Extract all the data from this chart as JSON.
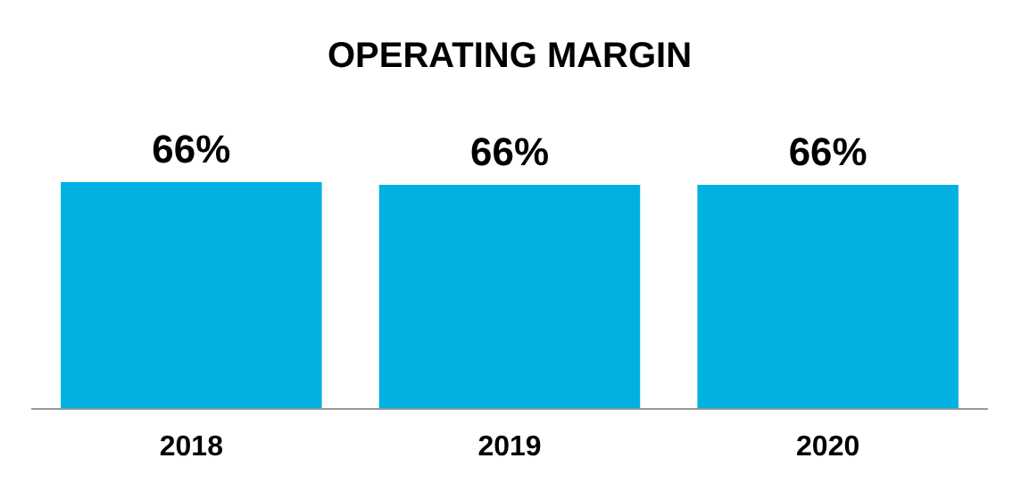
{
  "chart_data": {
    "type": "bar",
    "title": "OPERATING MARGIN",
    "categories": [
      "2018",
      "2019",
      "2020"
    ],
    "values": [
      66.4,
      65.6,
      65.6
    ],
    "value_labels": [
      "66%",
      "66%",
      "66%"
    ],
    "color": "#00b0e0",
    "tick_labels": "x"
  }
}
